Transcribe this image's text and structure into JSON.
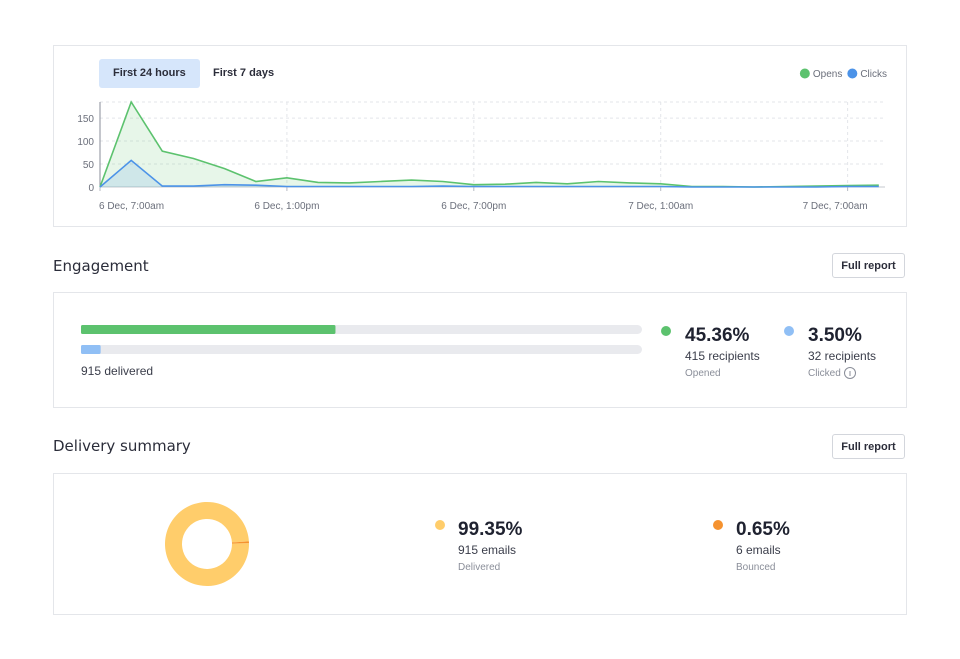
{
  "tabs": [
    "First 24 hours",
    "First 7 days"
  ],
  "chart_data": {
    "type": "area",
    "x": [
      0,
      1,
      2,
      3,
      4,
      5,
      6,
      7,
      8,
      9,
      10,
      11,
      12,
      13,
      14,
      15,
      16,
      17,
      18,
      19,
      20,
      21,
      22,
      23,
      24,
      25
    ],
    "xlim": [
      0,
      25.2
    ],
    "xticks": [
      {
        "value": 0,
        "label": "6 Dec, 7:00am"
      },
      {
        "value": 6,
        "label": "6 Dec, 1:00pm"
      },
      {
        "value": 12,
        "label": "6 Dec, 7:00pm"
      },
      {
        "value": 18,
        "label": "7 Dec, 1:00am"
      },
      {
        "value": 24,
        "label": "7 Dec, 7:00am"
      }
    ],
    "ylim": [
      0,
      185
    ],
    "yticks": [
      0,
      50,
      100,
      150
    ],
    "grid": true,
    "legend": "top-right",
    "series": [
      {
        "name": "Opens",
        "color": "#5cc26e",
        "values": [
          0,
          185,
          78,
          62,
          40,
          12,
          20,
          10,
          9,
          12,
          15,
          12,
          5,
          6,
          10,
          7,
          12,
          9,
          7,
          1,
          1,
          0,
          1,
          2,
          3,
          4
        ]
      },
      {
        "name": "Clicks",
        "color": "#4c93e8",
        "values": [
          0,
          58,
          2,
          2,
          5,
          4,
          1,
          1,
          1,
          1,
          1,
          2,
          1,
          1,
          1,
          1,
          1,
          1,
          1,
          0,
          0,
          0,
          0,
          0,
          1,
          1
        ]
      }
    ]
  },
  "engagement": {
    "title": "Engagement",
    "button": "Full report",
    "delivered": "915 delivered",
    "stats": [
      {
        "value": 45.36,
        "label": "45.36%",
        "count": "415 recipients",
        "name": "Opened",
        "color": "#5cc26e"
      },
      {
        "value": 3.5,
        "label": "3.50%",
        "count": "32 recipients",
        "name": "Clicked",
        "color": "#90bff5"
      }
    ]
  },
  "delivery": {
    "title": "Delivery summary",
    "button": "Full report",
    "stats": [
      {
        "value": 99.35,
        "label": "99.35%",
        "count": "915 emails",
        "name": "Delivered",
        "color": "#ffcd6b"
      },
      {
        "value": 0.65,
        "label": "0.65%",
        "count": "6 emails",
        "name": "Bounced",
        "color": "#f5922f"
      }
    ]
  }
}
